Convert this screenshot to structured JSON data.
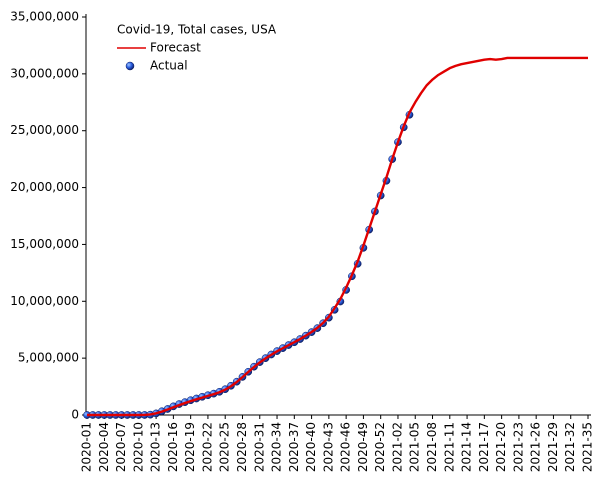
{
  "chart_data": {
    "type": "line",
    "title": "Covid-19, Total cases, USA",
    "categories": [
      "2020-01",
      null,
      null,
      "2020-04",
      null,
      null,
      "2020-07",
      null,
      null,
      "2020-10",
      null,
      null,
      "2020-13",
      null,
      null,
      "2020-16",
      null,
      null,
      "2020-19",
      null,
      null,
      "2020-22",
      null,
      null,
      "2020-25",
      null,
      null,
      "2020-28",
      null,
      null,
      "2020-31",
      null,
      null,
      "2020-34",
      null,
      null,
      "2020-37",
      null,
      null,
      "2020-40",
      null,
      null,
      "2020-43",
      null,
      null,
      "2020-46",
      null,
      null,
      "2020-49",
      null,
      null,
      "2020-52",
      null,
      null,
      "2021-02",
      null,
      null,
      "2021-05",
      null,
      null,
      "2021-08",
      null,
      null,
      "2021-11",
      null,
      null,
      "2021-14",
      null,
      null,
      "2021-17",
      null,
      null,
      "2021-20",
      null,
      null,
      "2021-23",
      null,
      null,
      "2021-26",
      null,
      null,
      "2021-29",
      null,
      null,
      "2021-32",
      null,
      null,
      "2021-35"
    ],
    "series": [
      {
        "name": "Forecast",
        "color": "#e00000",
        "style": "line",
        "values": [
          0,
          0,
          0,
          0,
          0,
          0,
          0,
          0,
          0,
          1000,
          10000,
          50000,
          150000,
          300000,
          480000,
          680000,
          870000,
          1050000,
          1220000,
          1380000,
          1530000,
          1680000,
          1830000,
          2000000,
          2230000,
          2530000,
          2900000,
          3330000,
          3780000,
          4220000,
          4620000,
          4980000,
          5300000,
          5600000,
          5870000,
          6140000,
          6400000,
          6680000,
          6980000,
          7300000,
          7660000,
          8100000,
          8650000,
          9400000,
          10200000,
          11200000,
          12300000,
          13500000,
          14900000,
          16400000,
          17900000,
          19400000,
          20900000,
          22500000,
          24000000,
          25400000,
          26600000,
          27500000,
          28300000,
          29000000,
          29500000,
          29900000,
          30200000,
          30500000,
          30700000,
          30850000,
          30950000,
          31050000,
          31150000,
          31250000,
          31300000,
          31250000,
          31300000,
          31400000,
          31400000,
          31400000,
          31400000,
          31400000,
          31400000,
          31400000,
          31400000,
          31400000,
          31400000,
          31400000,
          31400000,
          31400000,
          31400000,
          31400000
        ]
      },
      {
        "name": "Actual",
        "color": "#1a3fb0",
        "style": "points",
        "values": [
          0,
          0,
          0,
          0,
          0,
          0,
          0,
          0,
          0,
          0,
          3000,
          30000,
          140000,
          330000,
          530000,
          760000,
          960000,
          1130000,
          1300000,
          1450000,
          1600000,
          1740000,
          1880000,
          2040000,
          2270000,
          2570000,
          2930000,
          3350000,
          3800000,
          4250000,
          4650000,
          5000000,
          5320000,
          5620000,
          5880000,
          6150000,
          6400000,
          6680000,
          6980000,
          7290000,
          7640000,
          8070000,
          8560000,
          9250000,
          9980000,
          11000000,
          12200000,
          13300000,
          14700000,
          16300000,
          17900000,
          19300000,
          20600000,
          22500000,
          24000000,
          25300000,
          26400000,
          null,
          null,
          null,
          null,
          null,
          null,
          null,
          null,
          null,
          null,
          null,
          null,
          null,
          null,
          null,
          null,
          null,
          null,
          null,
          null,
          null,
          null,
          null,
          null,
          null,
          null,
          null,
          null,
          null,
          null,
          null
        ]
      }
    ],
    "ylim": [
      0,
      35000000
    ],
    "yticks": [
      0,
      {
        "value": 5000000,
        "label": "5,000,000"
      },
      {
        "value": 10000000,
        "label": "10,000,000"
      },
      {
        "value": 15000000,
        "label": "15,000,000"
      },
      {
        "value": 20000000,
        "label": "20,000,000"
      },
      {
        "value": 25000000,
        "label": "25,000,000"
      },
      {
        "value": 30000000,
        "label": "30,000,000"
      },
      {
        "value": 35000000,
        "label": "35,000,000"
      }
    ],
    "grid": false
  }
}
